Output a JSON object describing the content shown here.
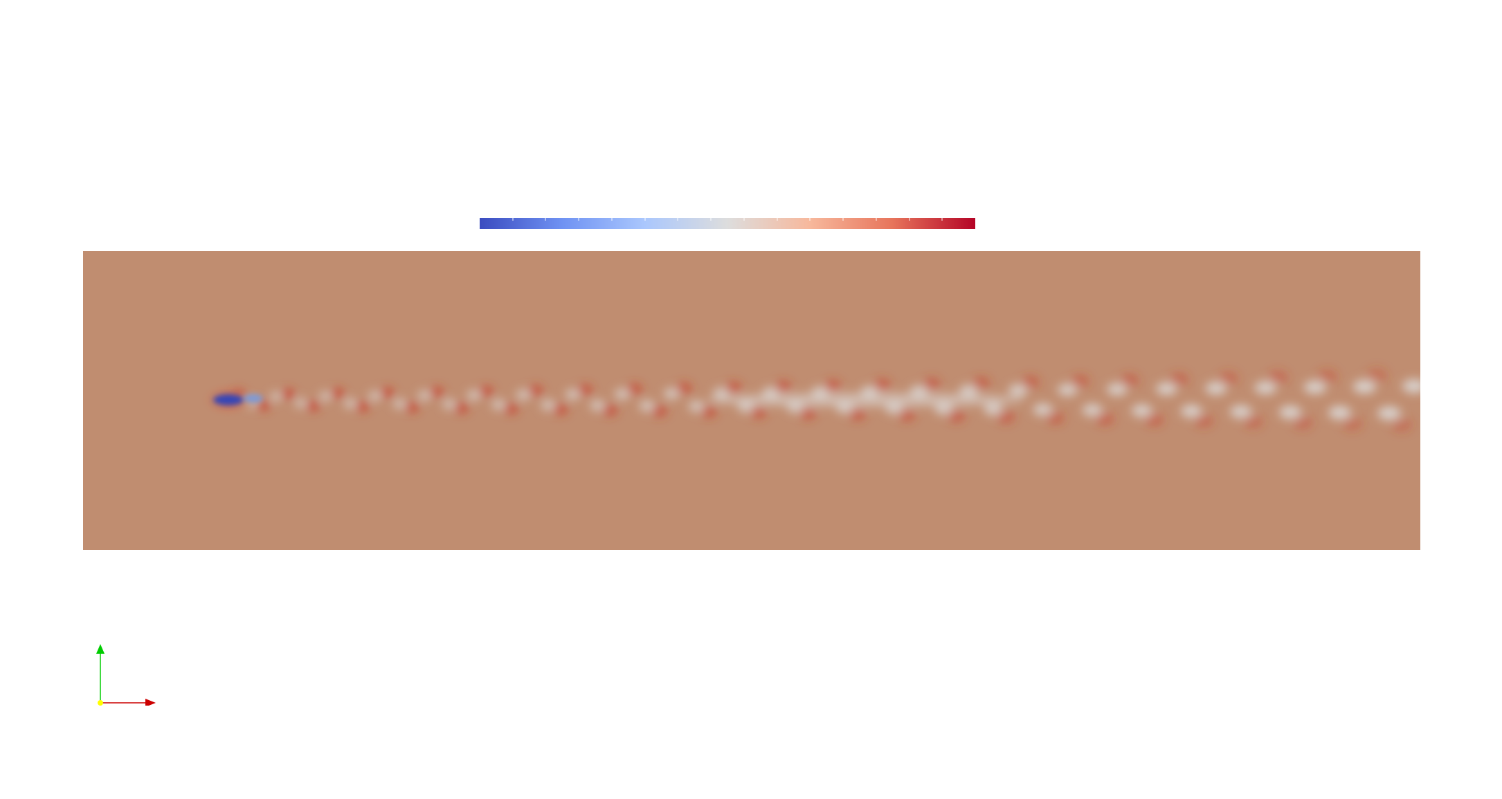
{
  "viewer": {
    "background_color": "#ffffff",
    "color_map": {
      "name": "Cool to Warm",
      "colors": [
        "#3b4cc0",
        "#6f92f3",
        "#aac7fd",
        "#dddddd",
        "#f7b89c",
        "#e7745b",
        "#b40426"
      ],
      "tick_count": 15
    },
    "field": {
      "background_color": "#c08d70",
      "obstacle_color": "#3446b8",
      "vortex_warm_color": "#c9402c",
      "vortex_cool_color": "#dcdcdc",
      "wake_vortex_count": 48
    },
    "orientation_axes": {
      "x_color": "#cc0000",
      "y_color": "#00cc00",
      "origin_color": "#ffff00"
    }
  }
}
